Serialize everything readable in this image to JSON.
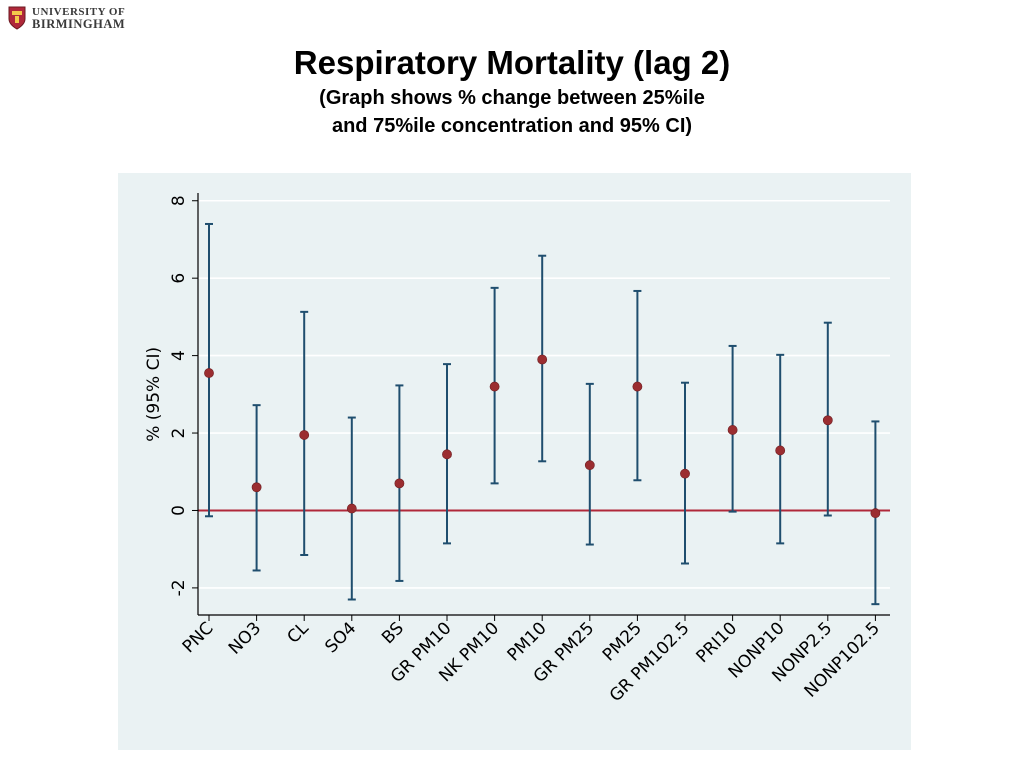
{
  "logo": {
    "line1": "UNIVERSITY OF",
    "line2": "BIRMINGHAM"
  },
  "title": "Respiratory Mortality (lag 2)",
  "subtitle_line1": "(Graph shows % change between 25%ile",
  "subtitle_line2": "and 75%ile concentration and 95% CI)",
  "colors": {
    "panel_bg": "#eaf2f3",
    "errorbar": "#1f4e6e",
    "point": "#9b2d30",
    "zero_line": "#b0283a",
    "grid": "#ffffff"
  },
  "chart_data": {
    "type": "scatter",
    "title": "Respiratory Mortality (lag 2)",
    "ylabel": "% (95% CI)",
    "xlabel": "",
    "ylim": [
      -2.7,
      8.2
    ],
    "yticks": [
      -2,
      0,
      2,
      4,
      6,
      8
    ],
    "grid": true,
    "reference_line_y": 0,
    "categories": [
      "PNC",
      "NO3",
      "CL",
      "SO4",
      "BS",
      "GR PM10",
      "NK PM10",
      "PM10",
      "GR PM25",
      "PM25",
      "GR PM102.5",
      "PRI10",
      "NONP10",
      "NONP2.5",
      "NONP102.5"
    ],
    "values": [
      3.55,
      0.6,
      1.95,
      0.05,
      0.7,
      1.45,
      3.2,
      3.9,
      1.17,
      3.2,
      0.95,
      2.08,
      1.55,
      2.33,
      -0.07
    ],
    "ci_lower": [
      -0.15,
      -1.55,
      -1.15,
      -2.3,
      -1.82,
      -0.85,
      0.7,
      1.27,
      -0.88,
      0.78,
      -1.37,
      -0.03,
      -0.85,
      -0.13,
      -2.42
    ],
    "ci_upper": [
      7.4,
      2.72,
      5.13,
      2.4,
      3.23,
      3.78,
      5.75,
      6.58,
      3.27,
      5.67,
      3.3,
      4.25,
      4.02,
      4.85,
      2.3
    ]
  }
}
